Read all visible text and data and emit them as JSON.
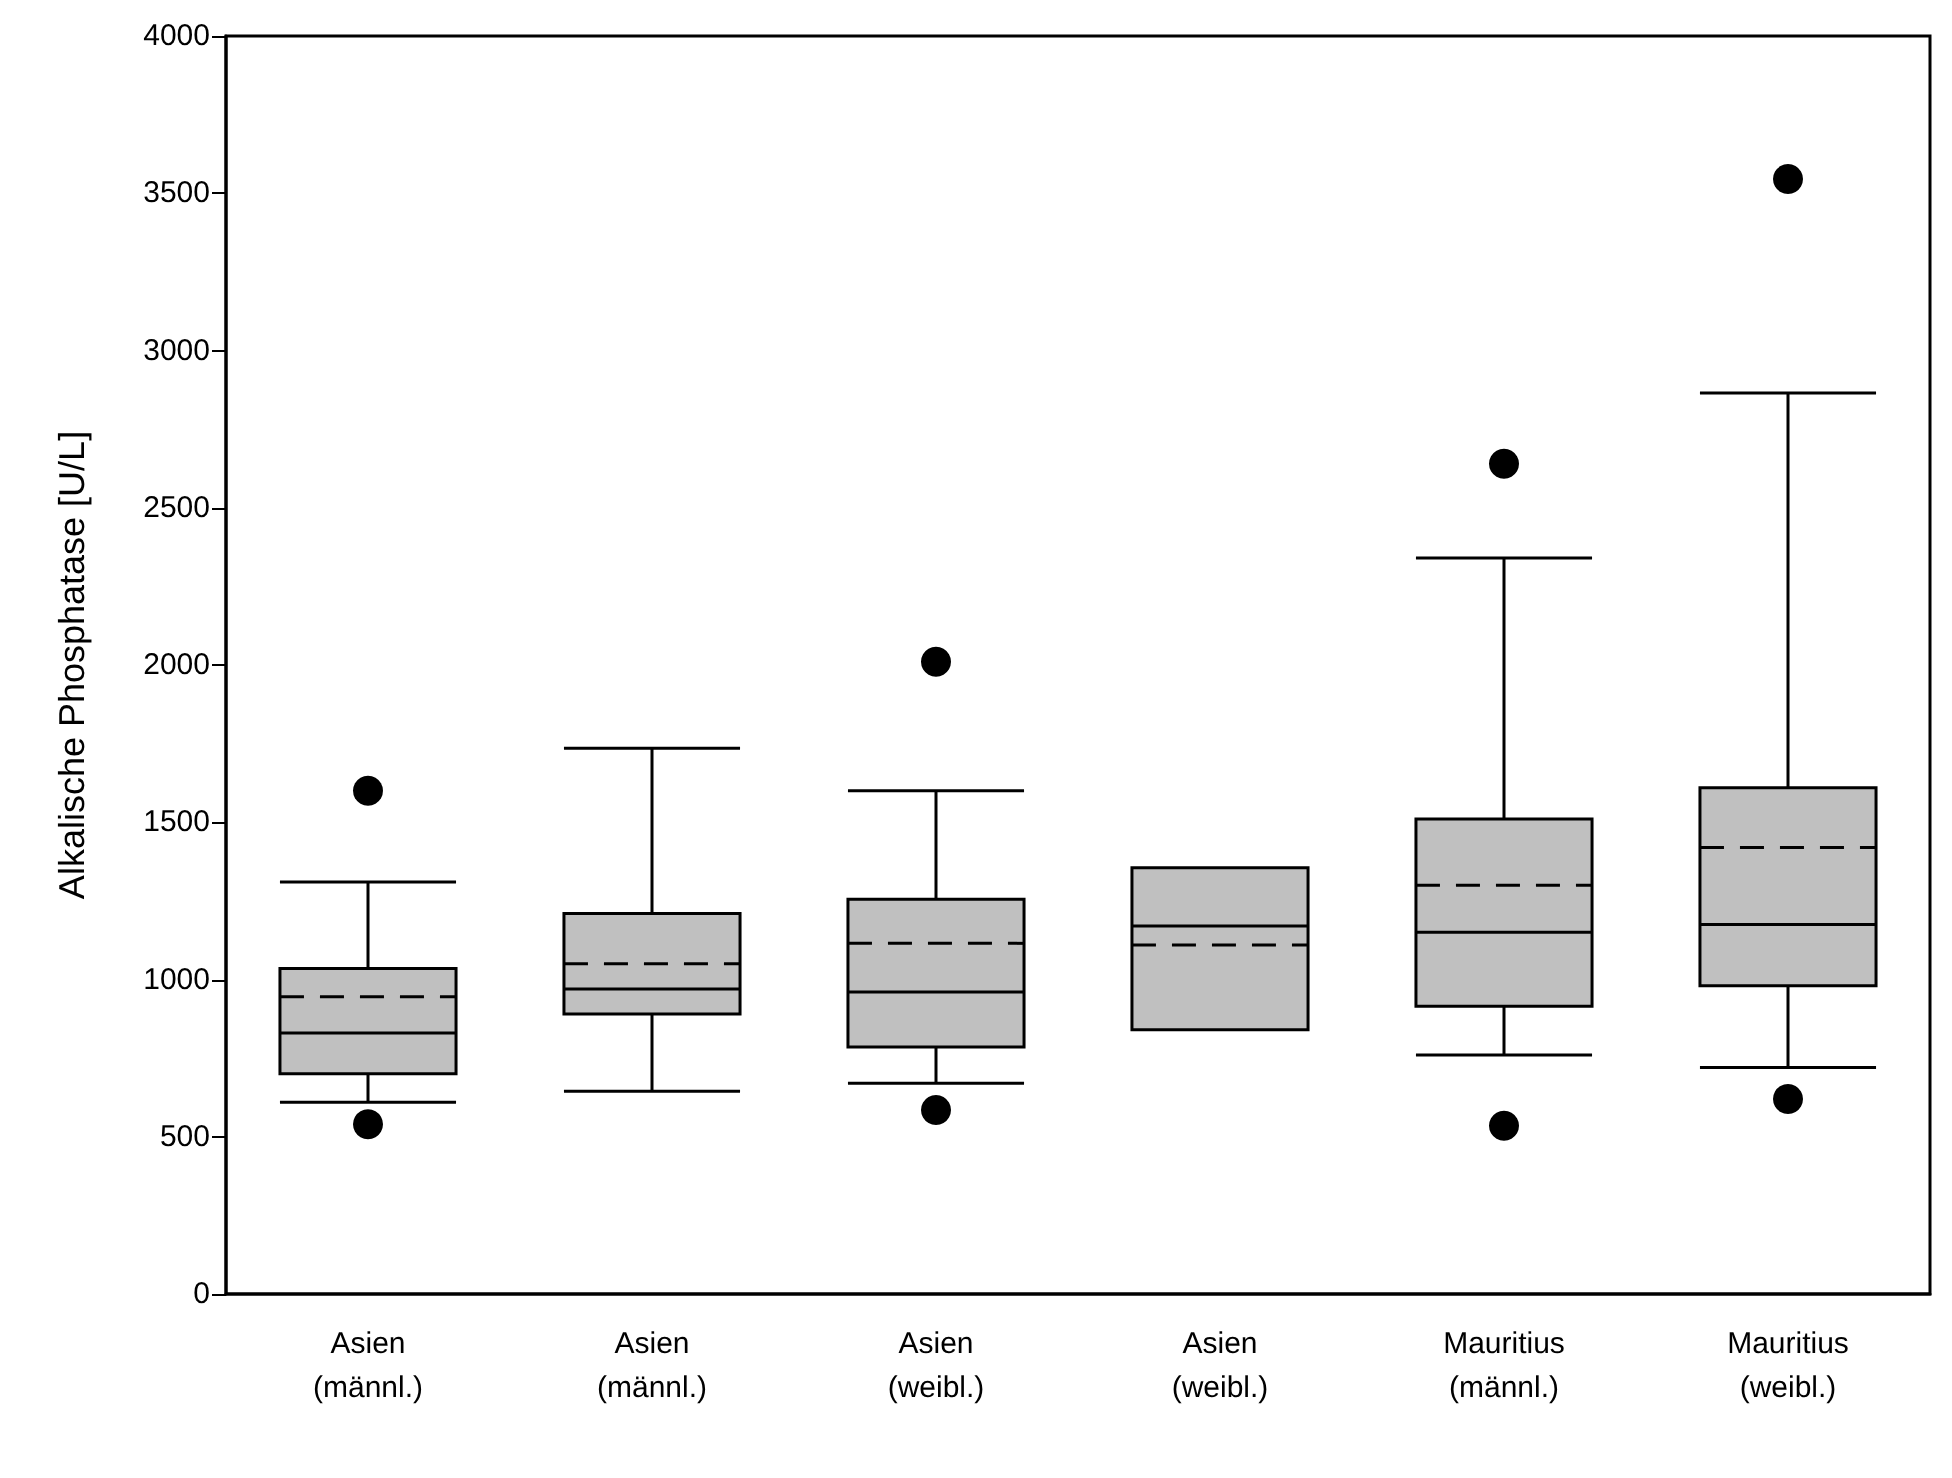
{
  "chart_data": {
    "type": "box",
    "ylabel": "Alkalische Phosphatase [U/L]",
    "categories": [
      "Asien (männl.)",
      "Asien (männl.)",
      "Asien (weibl.)",
      "Asien (weibl.)",
      "Mauritius (männl.)",
      "Mauritius (weibl.)"
    ],
    "boxes": [
      {
        "low": 610,
        "q1": 700,
        "median": 830,
        "q3": 1035,
        "high": 1310,
        "mean": 945,
        "outliers": [
          1600,
          540
        ]
      },
      {
        "low": 645,
        "q1": 890,
        "median": 970,
        "q3": 1210,
        "high": 1735,
        "mean": 1050
      },
      {
        "low": 670,
        "q1": 785,
        "median": 960,
        "q3": 1255,
        "high": 1600,
        "mean": 1115,
        "outliers": [
          2010,
          585
        ]
      },
      {
        "low": 840,
        "q1": 840,
        "median": 1170,
        "q3": 1355,
        "high": 1355,
        "mean": 1110
      },
      {
        "low": 760,
        "q1": 915,
        "median": 1150,
        "q3": 1510,
        "high": 2340,
        "mean": 1300,
        "outliers": [
          2640,
          535
        ]
      },
      {
        "low": 720,
        "q1": 980,
        "median": 1175,
        "q3": 1610,
        "high": 2865,
        "mean": 1420,
        "outliers": [
          3545,
          620
        ]
      }
    ],
    "color": "#c0c0c0",
    "ylim": [
      0,
      4000
    ],
    "yticks": [
      0,
      500,
      1000,
      1500,
      2000,
      2500,
      3000,
      3500,
      4000
    ],
    "grid": false
  }
}
